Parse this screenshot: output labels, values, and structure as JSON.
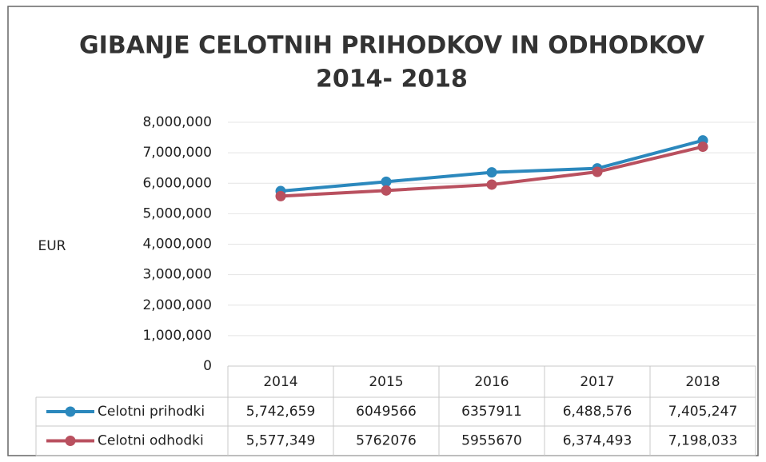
{
  "chart_data": {
    "type": "line",
    "title": [
      "GIBANJE CELOTNIH PRIHODKOV IN ODHODKOV",
      "2014- 2018"
    ],
    "y_label": "EUR",
    "categories": [
      "2014",
      "2015",
      "2016",
      "2017",
      "2018"
    ],
    "series": [
      {
        "name": "Celotni prihodki",
        "color": "#2b88bd",
        "values": [
          5742659,
          6049566,
          6357911,
          6488576,
          7405247
        ],
        "value_labels": [
          "5,742,659",
          "6049566",
          "6357911",
          "6,488,576",
          "7,405,247"
        ]
      },
      {
        "name": "Celotni odhodki",
        "color": "#b9505f",
        "values": [
          5577349,
          5762076,
          5955670,
          6374493,
          7198033
        ],
        "value_labels": [
          "5,577,349",
          "5762076",
          "5955670",
          "6,374,493",
          "7,198,033"
        ]
      }
    ],
    "ylim": [
      0,
      8000000
    ],
    "yticks": [
      0,
      {
        "value": 1000000,
        "label": "1,000,000"
      },
      {
        "value": 2000000,
        "label": "2,000,000"
      },
      {
        "value": 3000000,
        "label": "3,000,000"
      },
      {
        "value": 4000000,
        "label": "4,000,000"
      },
      {
        "value": 5000000,
        "label": "5,000,000"
      },
      {
        "value": 6000000,
        "label": "6,000,000"
      },
      {
        "value": 7000000,
        "label": "7,000,000"
      },
      {
        "value": 8000000,
        "label": "8,000,000"
      }
    ],
    "grid": true
  }
}
